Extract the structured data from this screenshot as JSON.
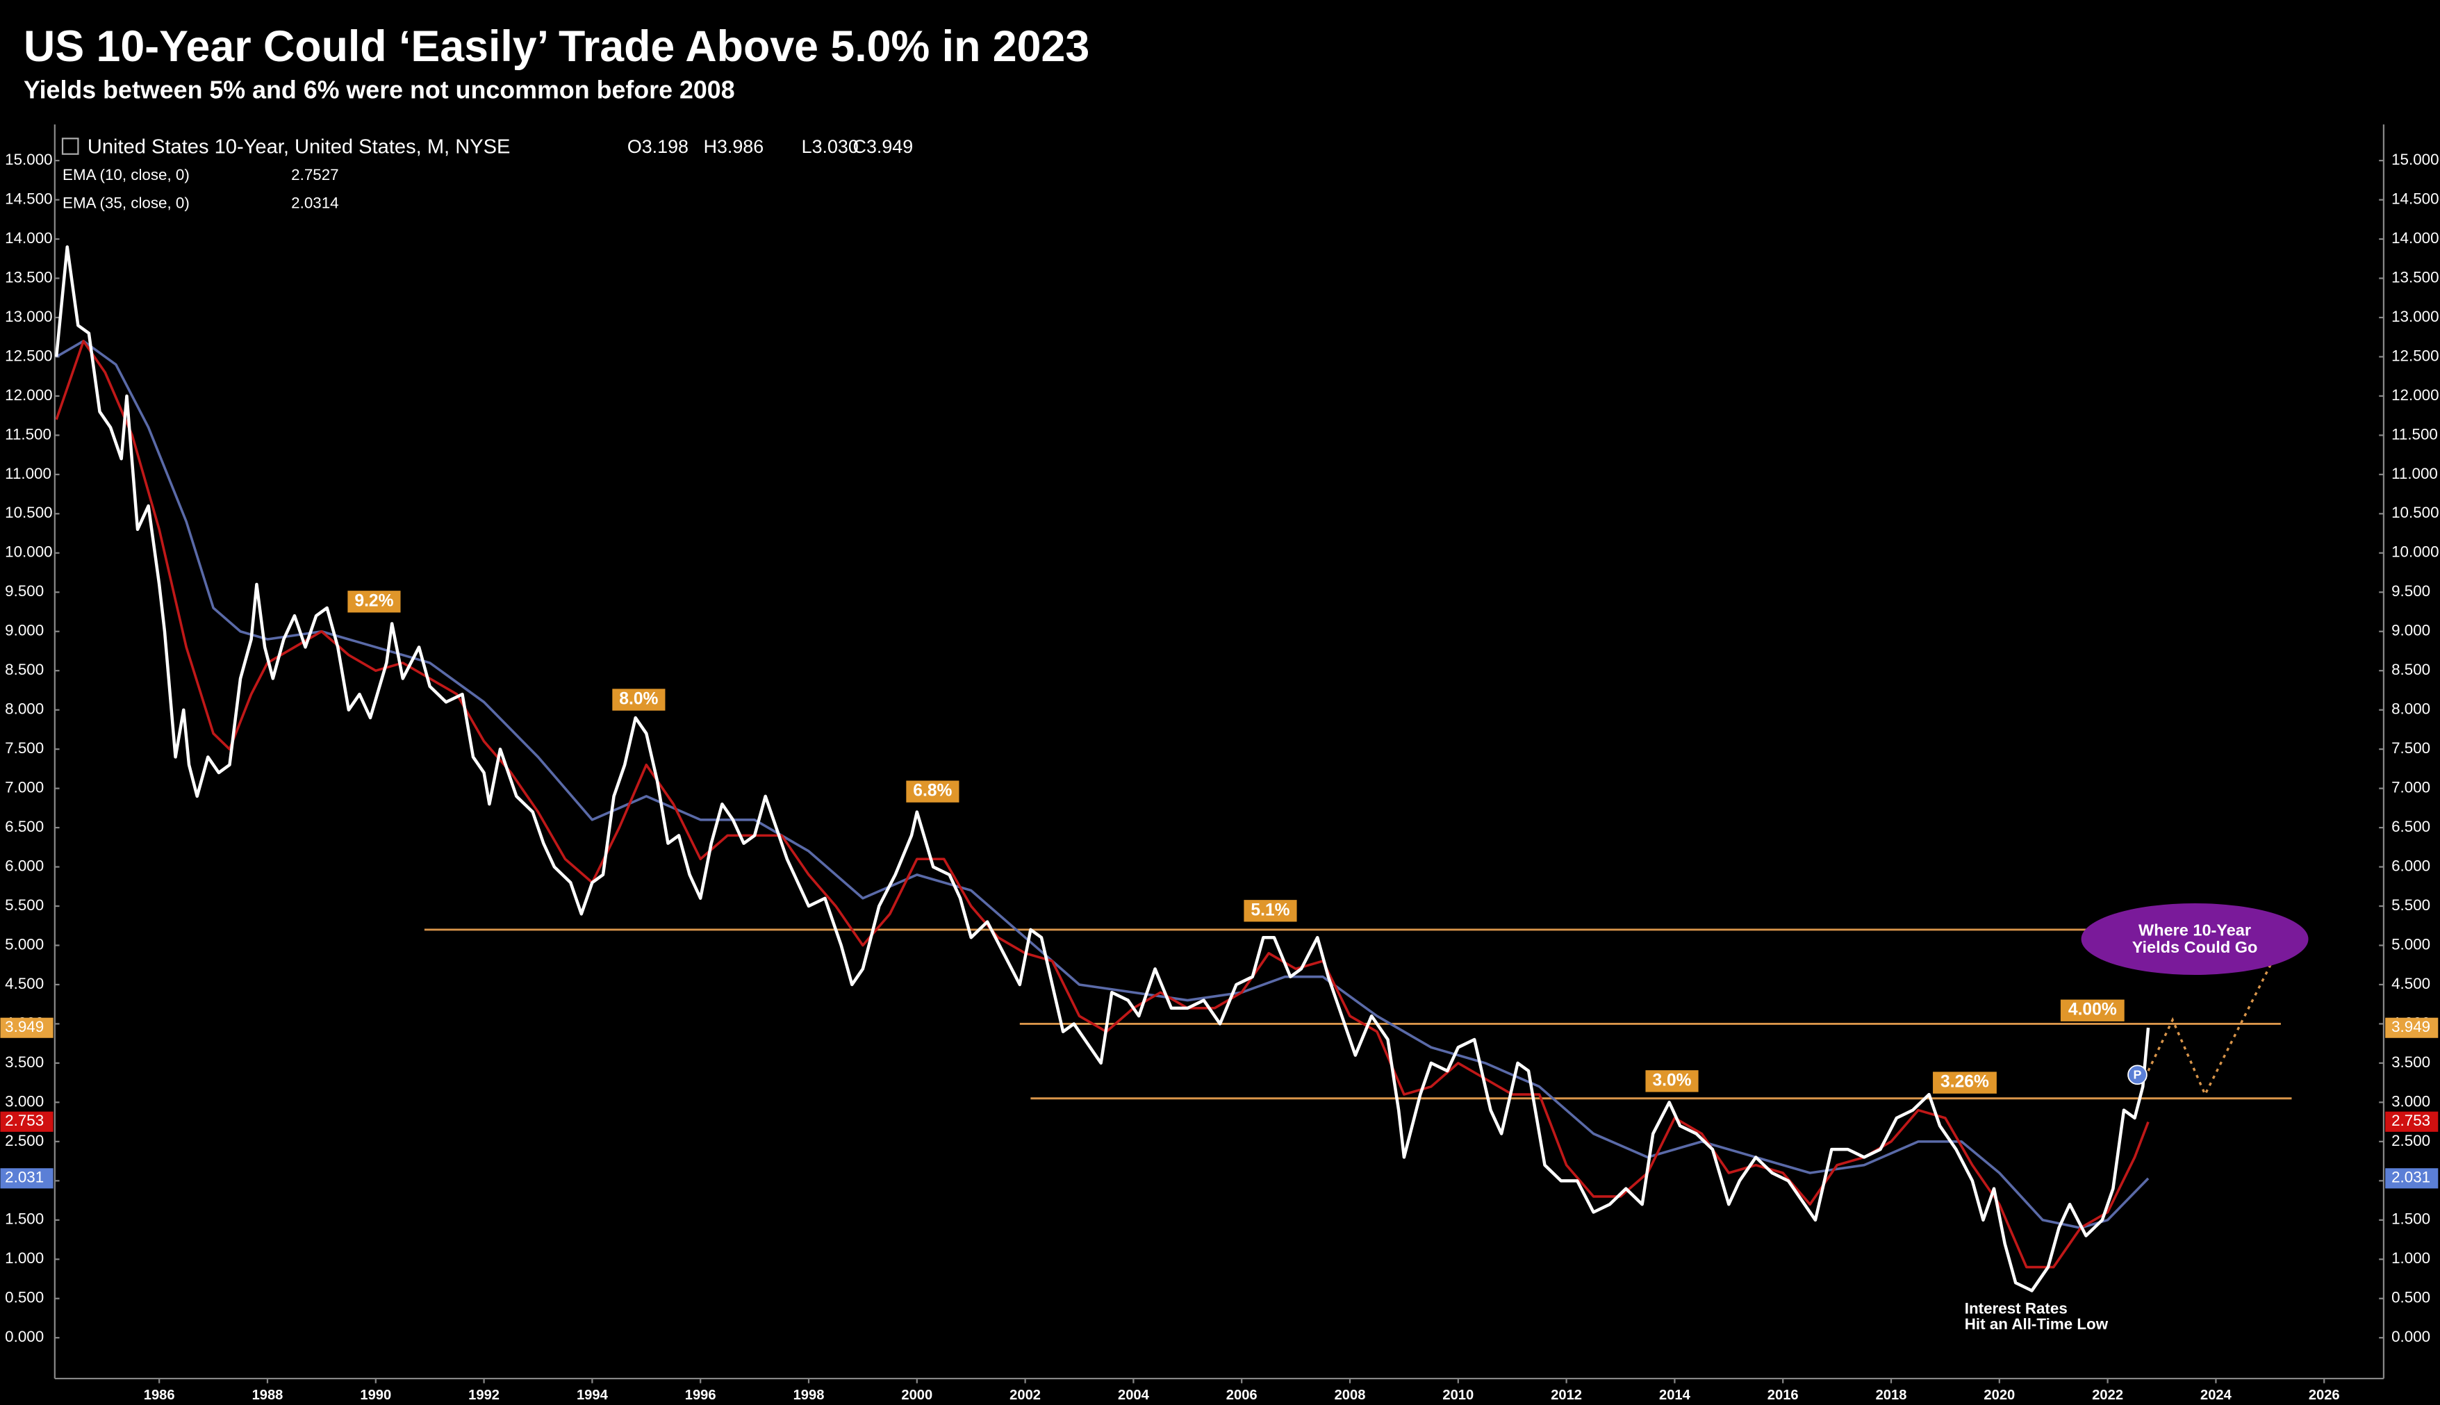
{
  "chart_data": {
    "type": "line",
    "title": "US 10-Year Could ‘Easily’ Trade Above 5.0% in 2023",
    "subtitle": "Yields between 5% and 6% were not uncommon before 2008",
    "header": {
      "symbol": "United States 10-Year, United States, M, NYSE",
      "ohlc": [
        "O3.198",
        "H3.986",
        "L3.030",
        "C3.949"
      ]
    },
    "xlim": [
      1984.07,
      2027.1
    ],
    "ylim": [
      -0.52,
      15.46
    ],
    "xticks": [
      1986,
      1988,
      1990,
      1992,
      1994,
      1996,
      1998,
      2000,
      2002,
      2004,
      2006,
      2008,
      2010,
      2012,
      2014,
      2016,
      2018,
      2020,
      2022,
      2024,
      2026
    ],
    "yticks": [
      {
        "value": 0,
        "label": "0.000"
      },
      {
        "value": 0.5,
        "label": "0.500"
      },
      {
        "value": 1,
        "label": "1.000"
      },
      {
        "value": 1.5,
        "label": "1.500"
      },
      {
        "value": 2,
        "label": "2.000"
      },
      {
        "value": 2.5,
        "label": "2.500"
      },
      {
        "value": 3,
        "label": "3.000"
      },
      {
        "value": 3.5,
        "label": "3.500"
      },
      {
        "value": 4,
        "label": "4.000"
      },
      {
        "value": 4.5,
        "label": "4.500"
      },
      {
        "value": 5,
        "label": "5.000"
      },
      {
        "value": 5.5,
        "label": "5.500"
      },
      {
        "value": 6,
        "label": "6.000"
      },
      {
        "value": 6.5,
        "label": "6.500"
      },
      {
        "value": 7,
        "label": "7.000"
      },
      {
        "value": 7.5,
        "label": "7.500"
      },
      {
        "value": 8,
        "label": "8.000"
      },
      {
        "value": 8.5,
        "label": "8.500"
      },
      {
        "value": 9,
        "label": "9.000"
      },
      {
        "value": 9.5,
        "label": "9.500"
      },
      {
        "value": 10,
        "label": "10.000"
      },
      {
        "value": 10.5,
        "label": "10.500"
      },
      {
        "value": 11,
        "label": "11.000"
      },
      {
        "value": 11.5,
        "label": "11.500"
      },
      {
        "value": 12,
        "label": "12.000"
      },
      {
        "value": 12.5,
        "label": "12.500"
      },
      {
        "value": 13,
        "label": "13.000"
      },
      {
        "value": 13.5,
        "label": "13.500"
      },
      {
        "value": 14,
        "label": "14.000"
      },
      {
        "value": 14.5,
        "label": "14.500"
      },
      {
        "value": 15,
        "label": "15.000"
      }
    ],
    "series": [
      {
        "color": "#ffffff",
        "x": [
          1984.1,
          1984.3,
          1984.5,
          1984.7,
          1984.9,
          1985.1,
          1985.3,
          1985.4,
          1985.6,
          1985.8,
          1986.0,
          1986.1,
          1986.3,
          1986.45,
          1986.55,
          1986.7,
          1986.9,
          1987.1,
          1987.3,
          1987.5,
          1987.7,
          1987.8,
          1987.95,
          1988.1,
          1988.3,
          1988.5,
          1988.7,
          1988.9,
          1989.1,
          1989.3,
          1989.5,
          1989.7,
          1989.9,
          1990.2,
          1990.3,
          1990.5,
          1990.8,
          1991.0,
          1991.3,
          1991.6,
          1991.8,
          1992.0,
          1992.1,
          1992.3,
          1992.6,
          1992.9,
          1993.1,
          1993.3,
          1993.6,
          1993.8,
          1994.0,
          1994.2,
          1994.4,
          1994.6,
          1994.8,
          1995.0,
          1995.2,
          1995.4,
          1995.6,
          1995.8,
          1996.0,
          1996.2,
          1996.4,
          1996.6,
          1996.8,
          1997.0,
          1997.2,
          1997.4,
          1997.6,
          1997.8,
          1998.0,
          1998.3,
          1998.6,
          1998.8,
          1999.0,
          1999.3,
          1999.6,
          1999.9,
          2000.0,
          2000.3,
          2000.6,
          2000.8,
          2001.0,
          2001.3,
          2001.6,
          2001.9,
          2002.1,
          2002.3,
          2002.5,
          2002.7,
          2002.9,
          2003.1,
          2003.4,
          2003.6,
          2003.9,
          2004.1,
          2004.4,
          2004.7,
          2005.0,
          2005.3,
          2005.6,
          2005.9,
          2006.2,
          2006.4,
          2006.6,
          2006.9,
          2007.1,
          2007.4,
          2007.6,
          2007.9,
          2008.1,
          2008.4,
          2008.7,
          2008.9,
          2009.0,
          2009.3,
          2009.5,
          2009.8,
          2010.0,
          2010.3,
          2010.6,
          2010.8,
          2011.1,
          2011.3,
          2011.6,
          2011.9,
          2012.2,
          2012.5,
          2012.8,
          2013.1,
          2013.4,
          2013.6,
          2013.9,
          2014.1,
          2014.4,
          2014.7,
          2015.0,
          2015.2,
          2015.5,
          2015.8,
          2016.1,
          2016.4,
          2016.6,
          2016.9,
          2017.2,
          2017.5,
          2017.8,
          2018.1,
          2018.4,
          2018.7,
          2018.9,
          2019.2,
          2019.5,
          2019.7,
          2019.9,
          2020.1,
          2020.3,
          2020.6,
          2020.9,
          2021.1,
          2021.3,
          2021.6,
          2021.9,
          2022.1,
          2022.3,
          2022.5,
          2022.65,
          2022.75
        ],
        "values": [
          12.5,
          13.9,
          12.9,
          12.8,
          11.8,
          11.6,
          11.2,
          12.0,
          10.3,
          10.6,
          9.6,
          9.0,
          7.4,
          8.0,
          7.3,
          6.9,
          7.4,
          7.2,
          7.3,
          8.4,
          8.9,
          9.6,
          8.8,
          8.4,
          8.9,
          9.2,
          8.8,
          9.2,
          9.3,
          8.8,
          8.0,
          8.2,
          7.9,
          8.6,
          9.1,
          8.4,
          8.8,
          8.3,
          8.1,
          8.2,
          7.4,
          7.2,
          6.8,
          7.5,
          6.9,
          6.7,
          6.3,
          6.0,
          5.8,
          5.4,
          5.8,
          5.9,
          6.9,
          7.3,
          7.9,
          7.7,
          7.1,
          6.3,
          6.4,
          5.9,
          5.6,
          6.3,
          6.8,
          6.6,
          6.3,
          6.4,
          6.9,
          6.5,
          6.1,
          5.8,
          5.5,
          5.6,
          5.0,
          4.5,
          4.7,
          5.5,
          5.9,
          6.4,
          6.7,
          6.0,
          5.9,
          5.6,
          5.1,
          5.3,
          4.9,
          4.5,
          5.2,
          5.1,
          4.5,
          3.9,
          4.0,
          3.8,
          3.5,
          4.4,
          4.3,
          4.1,
          4.7,
          4.2,
          4.2,
          4.3,
          4.0,
          4.5,
          4.6,
          5.1,
          5.1,
          4.6,
          4.7,
          5.1,
          4.6,
          4.0,
          3.6,
          4.1,
          3.8,
          2.9,
          2.3,
          3.1,
          3.5,
          3.4,
          3.7,
          3.8,
          2.9,
          2.6,
          3.5,
          3.4,
          2.2,
          2.0,
          2.0,
          1.6,
          1.7,
          1.9,
          1.7,
          2.6,
          3.0,
          2.7,
          2.6,
          2.4,
          1.7,
          2.0,
          2.3,
          2.1,
          2.0,
          1.7,
          1.5,
          2.4,
          2.4,
          2.3,
          2.4,
          2.8,
          2.9,
          3.1,
          2.7,
          2.4,
          2.0,
          1.5,
          1.9,
          1.2,
          0.7,
          0.6,
          0.9,
          1.4,
          1.7,
          1.3,
          1.5,
          1.9,
          2.9,
          2.8,
          3.2,
          3.95
        ]
      },
      {
        "name": "EMA (10, close, 0)",
        "last": 2.7527,
        "color": "#c01818",
        "x": [
          1984.1,
          1984.6,
          1985.0,
          1985.5,
          1986.0,
          1986.5,
          1987.0,
          1987.3,
          1987.7,
          1988.0,
          1988.5,
          1989.0,
          1989.5,
          1990.0,
          1990.5,
          1991.0,
          1991.5,
          1992.0,
          1992.5,
          1993.0,
          1993.5,
          1994.0,
          1994.5,
          1995.0,
          1995.5,
          1996.0,
          1996.5,
          1997.0,
          1997.5,
          1998.0,
          1998.5,
          1999.0,
          1999.5,
          2000.0,
          2000.5,
          2001.0,
          2001.5,
          2002.0,
          2002.5,
          2003.0,
          2003.5,
          2004.0,
          2004.5,
          2005.0,
          2005.5,
          2006.0,
          2006.5,
          2007.0,
          2007.5,
          2008.0,
          2008.5,
          2009.0,
          2009.5,
          2010.0,
          2010.5,
          2011.0,
          2011.5,
          2012.0,
          2012.5,
          2013.0,
          2013.5,
          2014.0,
          2014.5,
          2015.0,
          2015.5,
          2016.0,
          2016.5,
          2017.0,
          2017.5,
          2018.0,
          2018.5,
          2019.0,
          2019.5,
          2020.0,
          2020.5,
          2021.0,
          2021.5,
          2022.0,
          2022.5,
          2022.75
        ],
        "values": [
          11.7,
          12.7,
          12.3,
          11.5,
          10.3,
          8.8,
          7.7,
          7.5,
          8.2,
          8.6,
          8.8,
          9.0,
          8.7,
          8.5,
          8.6,
          8.4,
          8.2,
          7.6,
          7.2,
          6.7,
          6.1,
          5.8,
          6.5,
          7.3,
          6.8,
          6.1,
          6.4,
          6.4,
          6.4,
          5.9,
          5.5,
          5.0,
          5.4,
          6.1,
          6.1,
          5.5,
          5.1,
          4.9,
          4.8,
          4.1,
          3.9,
          4.2,
          4.4,
          4.2,
          4.2,
          4.4,
          4.9,
          4.7,
          4.8,
          4.1,
          3.9,
          3.1,
          3.2,
          3.5,
          3.3,
          3.1,
          3.1,
          2.2,
          1.8,
          1.8,
          2.1,
          2.8,
          2.6,
          2.1,
          2.2,
          2.1,
          1.7,
          2.2,
          2.3,
          2.5,
          2.9,
          2.8,
          2.2,
          1.7,
          0.9,
          0.9,
          1.4,
          1.6,
          2.3,
          2.75
        ]
      },
      {
        "name": "EMA (35, close, 0)",
        "last": 2.0314,
        "color": "#5a6aa8",
        "x": [
          1984.1,
          1984.6,
          1985.2,
          1985.8,
          1986.5,
          1987.0,
          1987.5,
          1988.0,
          1989.0,
          1990.0,
          1991.0,
          1992.0,
          1993.0,
          1994.0,
          1995.0,
          1996.0,
          1997.0,
          1998.0,
          1999.0,
          2000.0,
          2001.0,
          2002.0,
          2003.0,
          2004.0,
          2005.0,
          2006.0,
          2006.8,
          2007.5,
          2008.5,
          2009.5,
          2010.5,
          2011.5,
          2012.5,
          2013.5,
          2014.5,
          2015.5,
          2016.5,
          2017.5,
          2018.5,
          2019.3,
          2020.0,
          2020.8,
          2021.5,
          2022.0,
          2022.75
        ],
        "values": [
          12.5,
          12.7,
          12.4,
          11.6,
          10.4,
          9.3,
          9.0,
          8.9,
          9.0,
          8.8,
          8.6,
          8.1,
          7.4,
          6.6,
          6.9,
          6.6,
          6.6,
          6.2,
          5.6,
          5.9,
          5.7,
          5.1,
          4.5,
          4.4,
          4.3,
          4.4,
          4.6,
          4.6,
          4.1,
          3.7,
          3.5,
          3.2,
          2.6,
          2.3,
          2.5,
          2.3,
          2.1,
          2.2,
          2.5,
          2.5,
          2.1,
          1.5,
          1.4,
          1.5,
          2.03
        ]
      }
    ],
    "price_tags": [
      {
        "value": 3.949,
        "color": "#e8a33d"
      },
      {
        "value": 2.753,
        "color": "#d01010"
      },
      {
        "value": 2.031,
        "color": "#5b7fd6"
      }
    ],
    "levels": [
      {
        "value": 5.2,
        "x": [
          1990.9,
          2025.5
        ]
      },
      {
        "value": 4.0,
        "x": [
          2001.9,
          2025.2
        ]
      },
      {
        "value": 3.05,
        "x": [
          2002.1,
          2025.4
        ]
      }
    ],
    "level_color": "#d9954a",
    "projection": {
      "x": [
        2022.75,
        2023.2,
        2023.8,
        2025.3
      ],
      "values": [
        3.4,
        4.05,
        3.1,
        5.15
      ]
    },
    "annotations": [
      {
        "text": "9.2%",
        "x": 1989.97,
        "y": 9.38
      },
      {
        "text": "8.0%",
        "x": 1994.86,
        "y": 8.13
      },
      {
        "text": "6.8%",
        "x": 2000.29,
        "y": 6.96
      },
      {
        "text": "5.1%",
        "x": 2006.53,
        "y": 5.44
      },
      {
        "text": "4.00%",
        "x": 2021.72,
        "y": 4.17
      },
      {
        "text": "3.0%",
        "x": 2013.95,
        "y": 3.27
      },
      {
        "text": "3.26%",
        "x": 2019.36,
        "y": 3.25
      }
    ],
    "callout": {
      "lines": [
        "Where 10-Year",
        "Yields Could Go"
      ],
      "x": 2023.61,
      "y": 5.08,
      "color": "#7a1a9a"
    },
    "marker": {
      "text": "P",
      "x": 2022.55,
      "y": 3.35
    },
    "note": {
      "lines": [
        "Interest Rates",
        "Hit an All-Time Low"
      ],
      "x": 2020.45,
      "y": 0.26
    }
  }
}
